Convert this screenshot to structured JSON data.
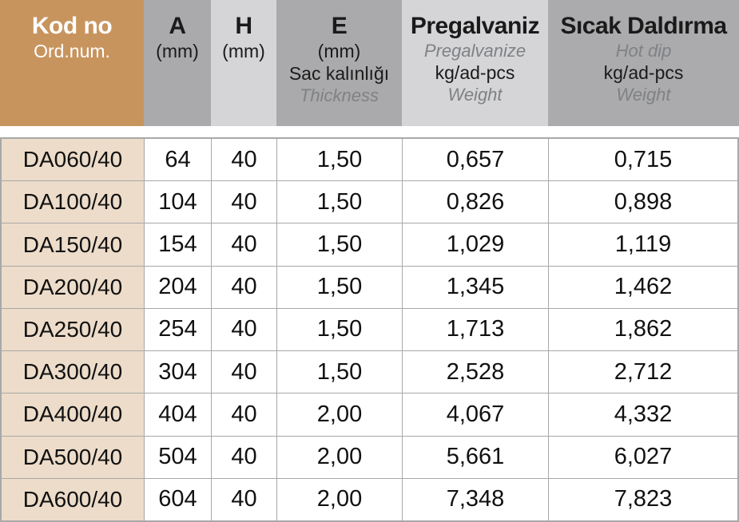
{
  "colors": {
    "header_brown": "#C8945E",
    "row_label_tan": "#ECDCC9",
    "header_gray_dark": "#AAAAAC",
    "header_gray_light": "#D5D5D7",
    "muted_italic_text": "#7F8184",
    "border_gray": "#A8A8A8",
    "header_text_on_brown": "#FFFFFF",
    "text_dark": "#1A1A1A"
  },
  "header": {
    "kod": {
      "title": "Kod no",
      "subtitle": "Ord.num."
    },
    "a": {
      "title": "A",
      "unit": "(mm)"
    },
    "h": {
      "title": "H",
      "unit": "(mm)"
    },
    "e": {
      "title": "E",
      "unit": "(mm)",
      "label_tr": "Sac kalınlığı",
      "label_en": "Thickness"
    },
    "pregalvaniz": {
      "title": "Pregalvaniz",
      "subtitle": "Pregalvanize",
      "unit": "kg/ad-pcs",
      "weight_label": "Weight"
    },
    "sicak_daldirma": {
      "title": "Sıcak Daldırma",
      "subtitle": "Hot dip",
      "unit": "kg/ad-pcs",
      "weight_label": "Weight"
    }
  },
  "table": {
    "rows": [
      {
        "code": "DA060/40",
        "a": "64",
        "h": "40",
        "e": "1,50",
        "pregalvaniz": "0,657",
        "hot_dip": "0,715"
      },
      {
        "code": "DA100/40",
        "a": "104",
        "h": "40",
        "e": "1,50",
        "pregalvaniz": "0,826",
        "hot_dip": "0,898"
      },
      {
        "code": "DA150/40",
        "a": "154",
        "h": "40",
        "e": "1,50",
        "pregalvaniz": "1,029",
        "hot_dip": "1,119"
      },
      {
        "code": "DA200/40",
        "a": "204",
        "h": "40",
        "e": "1,50",
        "pregalvaniz": "1,345",
        "hot_dip": "1,462"
      },
      {
        "code": "DA250/40",
        "a": "254",
        "h": "40",
        "e": "1,50",
        "pregalvaniz": "1,713",
        "hot_dip": "1,862"
      },
      {
        "code": "DA300/40",
        "a": "304",
        "h": "40",
        "e": "1,50",
        "pregalvaniz": "2,528",
        "hot_dip": "2,712"
      },
      {
        "code": "DA400/40",
        "a": "404",
        "h": "40",
        "e": "2,00",
        "pregalvaniz": "4,067",
        "hot_dip": "4,332"
      },
      {
        "code": "DA500/40",
        "a": "504",
        "h": "40",
        "e": "2,00",
        "pregalvaniz": "5,661",
        "hot_dip": "6,027"
      },
      {
        "code": "DA600/40",
        "a": "604",
        "h": "40",
        "e": "2,00",
        "pregalvaniz": "7,348",
        "hot_dip": "7,823"
      }
    ]
  }
}
